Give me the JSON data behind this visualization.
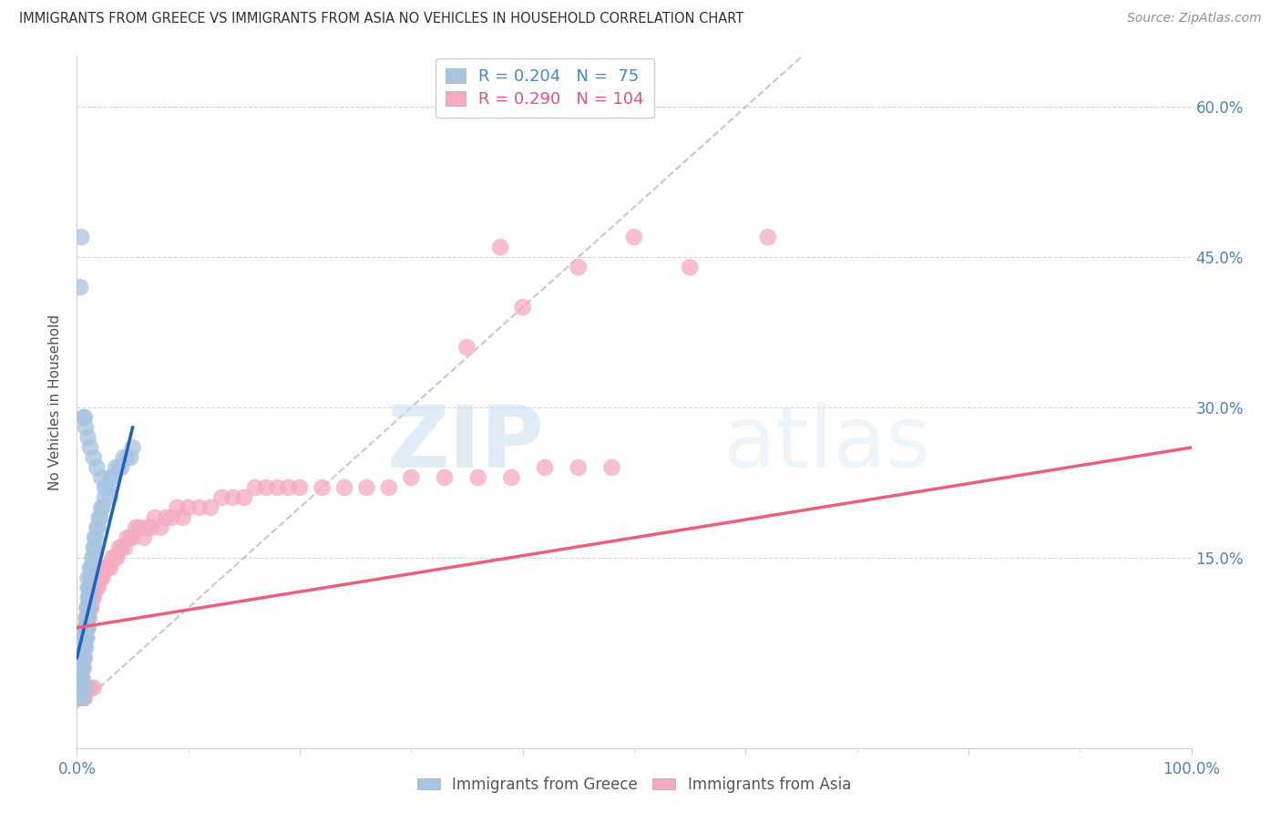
{
  "title": "IMMIGRANTS FROM GREECE VS IMMIGRANTS FROM ASIA NO VEHICLES IN HOUSEHOLD CORRELATION CHART",
  "source": "Source: ZipAtlas.com",
  "ylabel": "No Vehicles in Household",
  "y_ticks_right": [
    "60.0%",
    "45.0%",
    "30.0%",
    "15.0%"
  ],
  "y_tick_values": [
    0.6,
    0.45,
    0.3,
    0.15
  ],
  "xlim": [
    0.0,
    1.0
  ],
  "ylim": [
    -0.04,
    0.65
  ],
  "greece_R": 0.204,
  "greece_N": 75,
  "asia_R": 0.29,
  "asia_N": 104,
  "greece_color": "#a8c4e0",
  "asia_color": "#f5aabf",
  "greece_line_color": "#2060c0",
  "asia_line_color": "#e8607a",
  "diagonal_color": "#b8b8c8",
  "watermark_zip": "ZIP",
  "watermark_atlas": "atlas",
  "background_color": "#ffffff",
  "title_color": "#303030",
  "axis_color": "#5080c0",
  "greece_scatter_x": [
    0.002,
    0.003,
    0.004,
    0.004,
    0.005,
    0.005,
    0.005,
    0.006,
    0.006,
    0.006,
    0.007,
    0.007,
    0.007,
    0.007,
    0.008,
    0.008,
    0.008,
    0.009,
    0.009,
    0.009,
    0.009,
    0.01,
    0.01,
    0.01,
    0.01,
    0.01,
    0.01,
    0.011,
    0.011,
    0.011,
    0.012,
    0.012,
    0.012,
    0.013,
    0.013,
    0.014,
    0.014,
    0.015,
    0.015,
    0.016,
    0.016,
    0.017,
    0.018,
    0.019,
    0.02,
    0.021,
    0.022,
    0.023,
    0.025,
    0.027,
    0.028,
    0.03,
    0.032,
    0.035,
    0.038,
    0.04,
    0.042,
    0.045,
    0.048,
    0.05,
    0.003,
    0.004,
    0.006,
    0.007,
    0.008,
    0.01,
    0.012,
    0.015,
    0.018,
    0.022,
    0.025,
    0.03,
    0.003,
    0.005,
    0.008
  ],
  "greece_scatter_y": [
    0.03,
    0.02,
    0.03,
    0.04,
    0.03,
    0.04,
    0.05,
    0.04,
    0.05,
    0.06,
    0.05,
    0.06,
    0.07,
    0.08,
    0.06,
    0.07,
    0.08,
    0.07,
    0.08,
    0.09,
    0.1,
    0.08,
    0.09,
    0.1,
    0.11,
    0.12,
    0.13,
    0.1,
    0.11,
    0.12,
    0.12,
    0.13,
    0.14,
    0.13,
    0.14,
    0.14,
    0.15,
    0.15,
    0.16,
    0.16,
    0.17,
    0.17,
    0.18,
    0.18,
    0.19,
    0.19,
    0.2,
    0.2,
    0.21,
    0.22,
    0.22,
    0.23,
    0.23,
    0.24,
    0.24,
    0.24,
    0.25,
    0.25,
    0.25,
    0.26,
    0.42,
    0.47,
    0.29,
    0.29,
    0.28,
    0.27,
    0.26,
    0.25,
    0.24,
    0.23,
    0.22,
    0.21,
    0.01,
    0.01,
    0.02
  ],
  "asia_scatter_x": [
    0.002,
    0.003,
    0.003,
    0.004,
    0.004,
    0.005,
    0.005,
    0.005,
    0.006,
    0.006,
    0.006,
    0.007,
    0.007,
    0.008,
    0.008,
    0.008,
    0.009,
    0.009,
    0.01,
    0.01,
    0.01,
    0.011,
    0.011,
    0.012,
    0.012,
    0.013,
    0.013,
    0.014,
    0.015,
    0.015,
    0.016,
    0.017,
    0.018,
    0.019,
    0.02,
    0.022,
    0.023,
    0.025,
    0.027,
    0.028,
    0.03,
    0.032,
    0.034,
    0.036,
    0.038,
    0.04,
    0.043,
    0.045,
    0.048,
    0.05,
    0.053,
    0.056,
    0.06,
    0.063,
    0.067,
    0.07,
    0.075,
    0.08,
    0.085,
    0.09,
    0.095,
    0.1,
    0.11,
    0.12,
    0.13,
    0.14,
    0.15,
    0.16,
    0.17,
    0.18,
    0.19,
    0.2,
    0.22,
    0.24,
    0.26,
    0.28,
    0.3,
    0.33,
    0.36,
    0.39,
    0.42,
    0.45,
    0.48,
    0.38,
    0.45,
    0.5,
    0.55,
    0.62,
    0.35,
    0.4,
    0.004,
    0.005,
    0.006,
    0.007,
    0.008,
    0.01,
    0.012,
    0.015,
    0.003,
    0.003,
    0.004,
    0.004,
    0.005,
    0.005
  ],
  "asia_scatter_y": [
    0.03,
    0.02,
    0.04,
    0.03,
    0.05,
    0.04,
    0.05,
    0.06,
    0.05,
    0.06,
    0.07,
    0.06,
    0.07,
    0.07,
    0.08,
    0.09,
    0.08,
    0.09,
    0.08,
    0.09,
    0.1,
    0.09,
    0.1,
    0.1,
    0.11,
    0.1,
    0.11,
    0.11,
    0.11,
    0.12,
    0.12,
    0.12,
    0.13,
    0.12,
    0.13,
    0.13,
    0.13,
    0.14,
    0.14,
    0.14,
    0.14,
    0.15,
    0.15,
    0.15,
    0.16,
    0.16,
    0.16,
    0.17,
    0.17,
    0.17,
    0.18,
    0.18,
    0.17,
    0.18,
    0.18,
    0.19,
    0.18,
    0.19,
    0.19,
    0.2,
    0.19,
    0.2,
    0.2,
    0.2,
    0.21,
    0.21,
    0.21,
    0.22,
    0.22,
    0.22,
    0.22,
    0.22,
    0.22,
    0.22,
    0.22,
    0.22,
    0.23,
    0.23,
    0.23,
    0.23,
    0.24,
    0.24,
    0.24,
    0.46,
    0.44,
    0.47,
    0.44,
    0.47,
    0.36,
    0.4,
    0.01,
    0.01,
    0.01,
    0.01,
    0.02,
    0.02,
    0.02,
    0.02,
    0.01,
    0.01,
    0.01,
    0.01,
    0.01,
    0.01
  ],
  "greece_line_x": [
    0.0,
    0.05
  ],
  "greece_line_y_start": 0.05,
  "greece_line_y_end": 0.28,
  "asia_line_x": [
    0.0,
    1.0
  ],
  "asia_line_y_start": 0.08,
  "asia_line_y_end": 0.26
}
